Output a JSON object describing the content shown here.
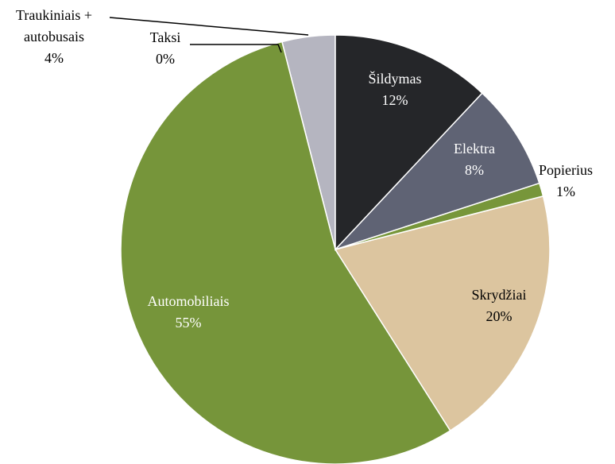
{
  "chart_data": {
    "type": "pie",
    "categories": [
      "Šildymas",
      "Elektra",
      "Popierius",
      "Skrydžiai",
      "Automobiliais",
      "Taksi",
      "Traukiniais + autobusais"
    ],
    "values": [
      12,
      8,
      1,
      20,
      55,
      0,
      4
    ],
    "value_labels": [
      "12%",
      "8%",
      "1%",
      "20%",
      "55%",
      "0%",
      "4%"
    ],
    "colors": [
      "#252629",
      "#5f6374",
      "#77963a",
      "#dcc59f",
      "#76953a",
      "#b5b5c0",
      "#b5b5c0"
    ]
  }
}
